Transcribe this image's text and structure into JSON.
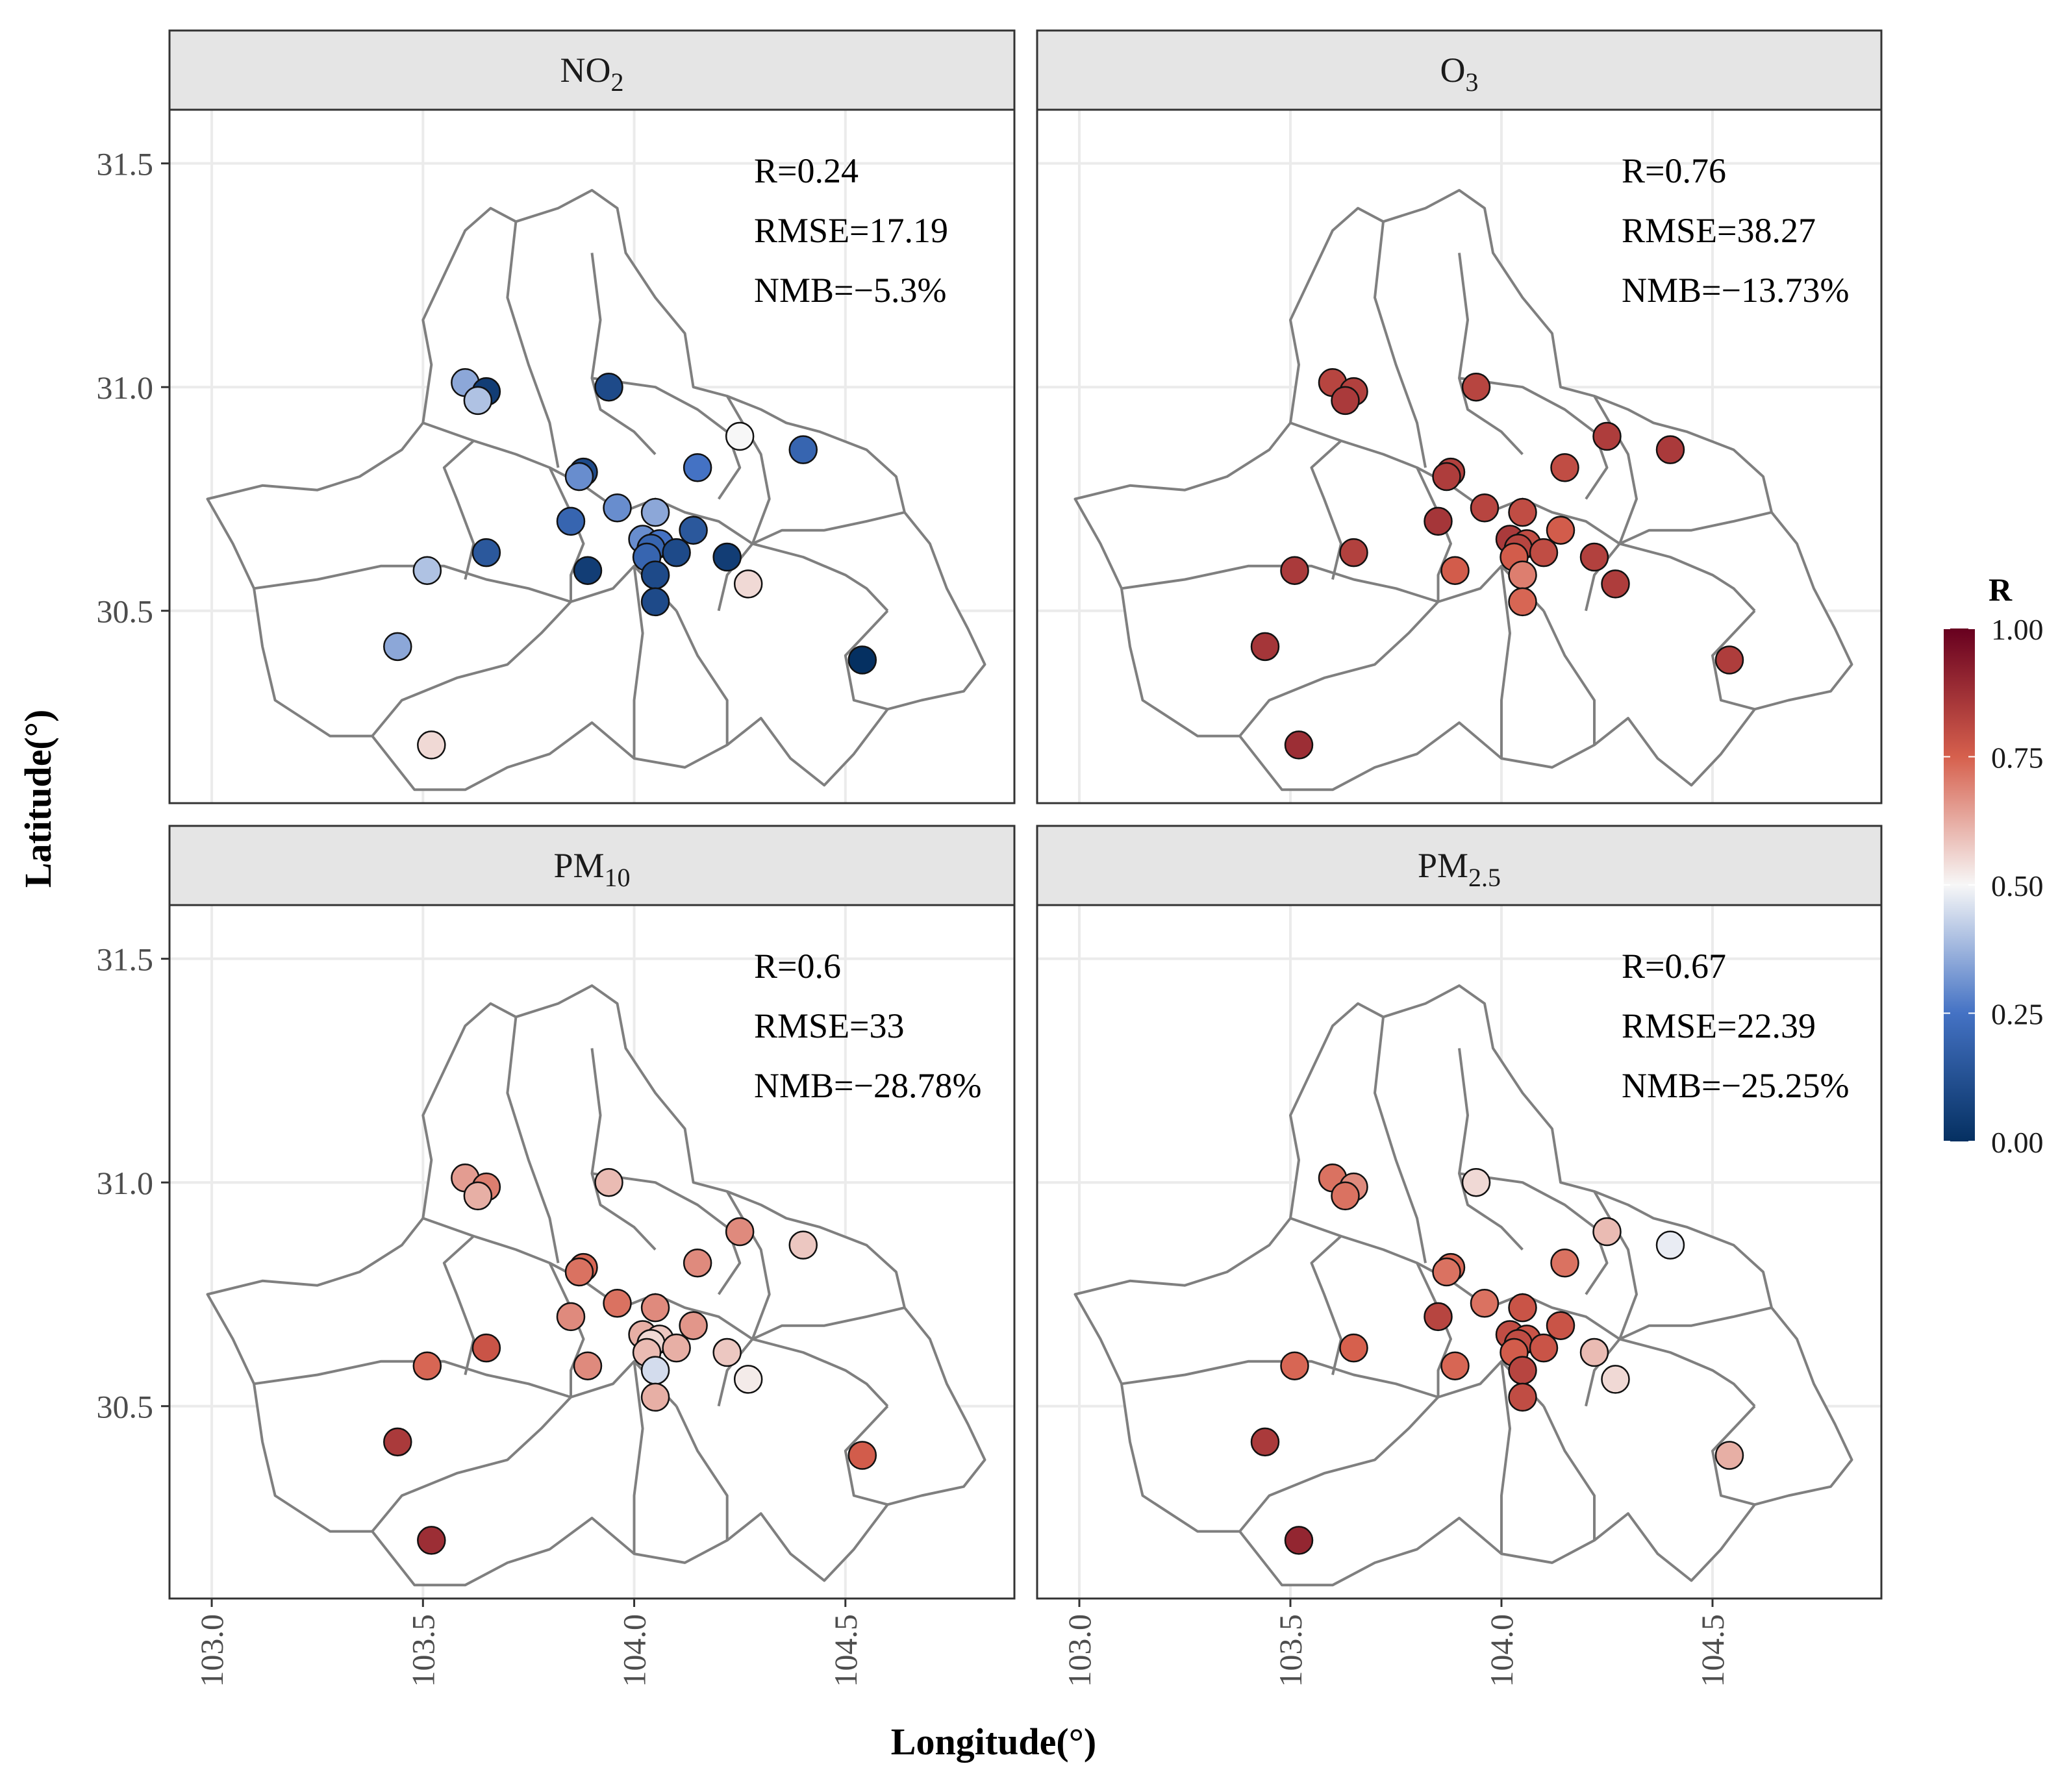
{
  "chart_data": {
    "type": "scatter",
    "facets": [
      {
        "name": "NO2",
        "title_main": "NO",
        "title_sub": "2",
        "stats": [
          "R=0.24",
          "RMSE=17.19",
          "NMB=−5.3%"
        ],
        "points": [
          {
            "lon": 103.6,
            "lat": 31.01,
            "r": 0.35
          },
          {
            "lon": 103.65,
            "lat": 30.99,
            "r": 0.05
          },
          {
            "lon": 103.63,
            "lat": 30.97,
            "r": 0.4
          },
          {
            "lon": 103.94,
            "lat": 31.0,
            "r": 0.1
          },
          {
            "lon": 104.25,
            "lat": 30.89,
            "r": 0.5
          },
          {
            "lon": 104.4,
            "lat": 30.86,
            "r": 0.2
          },
          {
            "lon": 104.15,
            "lat": 30.82,
            "r": 0.25
          },
          {
            "lon": 103.88,
            "lat": 30.81,
            "r": 0.1
          },
          {
            "lon": 103.87,
            "lat": 30.8,
            "r": 0.3
          },
          {
            "lon": 103.96,
            "lat": 30.73,
            "r": 0.3
          },
          {
            "lon": 104.05,
            "lat": 30.72,
            "r": 0.35
          },
          {
            "lon": 103.85,
            "lat": 30.7,
            "r": 0.2
          },
          {
            "lon": 104.14,
            "lat": 30.68,
            "r": 0.15
          },
          {
            "lon": 104.02,
            "lat": 30.66,
            "r": 0.3
          },
          {
            "lon": 104.06,
            "lat": 30.65,
            "r": 0.25
          },
          {
            "lon": 104.04,
            "lat": 30.64,
            "r": 0.2
          },
          {
            "lon": 103.65,
            "lat": 30.63,
            "r": 0.15
          },
          {
            "lon": 104.1,
            "lat": 30.63,
            "r": 0.1
          },
          {
            "lon": 104.03,
            "lat": 30.62,
            "r": 0.2
          },
          {
            "lon": 104.22,
            "lat": 30.62,
            "r": 0.05
          },
          {
            "lon": 103.89,
            "lat": 30.59,
            "r": 0.05
          },
          {
            "lon": 103.51,
            "lat": 30.59,
            "r": 0.4
          },
          {
            "lon": 104.05,
            "lat": 30.58,
            "r": 0.1
          },
          {
            "lon": 104.27,
            "lat": 30.56,
            "r": 0.55
          },
          {
            "lon": 104.05,
            "lat": 30.52,
            "r": 0.1
          },
          {
            "lon": 103.44,
            "lat": 30.42,
            "r": 0.35
          },
          {
            "lon": 104.54,
            "lat": 30.39,
            "r": 0.0
          },
          {
            "lon": 103.52,
            "lat": 30.2,
            "r": 0.55
          }
        ]
      },
      {
        "name": "O3",
        "title_main": "O",
        "title_sub": "3",
        "stats": [
          "R=0.76",
          "RMSE=38.27",
          "NMB=−13.73%"
        ],
        "points": [
          {
            "lon": 103.6,
            "lat": 31.01,
            "r": 0.82
          },
          {
            "lon": 103.65,
            "lat": 30.99,
            "r": 0.83
          },
          {
            "lon": 103.63,
            "lat": 30.97,
            "r": 0.85
          },
          {
            "lon": 103.94,
            "lat": 31.0,
            "r": 0.82
          },
          {
            "lon": 104.25,
            "lat": 30.89,
            "r": 0.84
          },
          {
            "lon": 104.4,
            "lat": 30.86,
            "r": 0.85
          },
          {
            "lon": 104.15,
            "lat": 30.82,
            "r": 0.8
          },
          {
            "lon": 103.88,
            "lat": 30.81,
            "r": 0.83
          },
          {
            "lon": 103.87,
            "lat": 30.8,
            "r": 0.84
          },
          {
            "lon": 103.96,
            "lat": 30.73,
            "r": 0.82
          },
          {
            "lon": 104.05,
            "lat": 30.72,
            "r": 0.8
          },
          {
            "lon": 103.85,
            "lat": 30.7,
            "r": 0.86
          },
          {
            "lon": 104.14,
            "lat": 30.68,
            "r": 0.76
          },
          {
            "lon": 104.02,
            "lat": 30.66,
            "r": 0.85
          },
          {
            "lon": 104.06,
            "lat": 30.65,
            "r": 0.8
          },
          {
            "lon": 104.04,
            "lat": 30.64,
            "r": 0.82
          },
          {
            "lon": 103.65,
            "lat": 30.63,
            "r": 0.83
          },
          {
            "lon": 104.1,
            "lat": 30.63,
            "r": 0.8
          },
          {
            "lon": 104.03,
            "lat": 30.62,
            "r": 0.76
          },
          {
            "lon": 104.22,
            "lat": 30.62,
            "r": 0.83
          },
          {
            "lon": 103.89,
            "lat": 30.59,
            "r": 0.76
          },
          {
            "lon": 103.51,
            "lat": 30.59,
            "r": 0.85
          },
          {
            "lon": 104.05,
            "lat": 30.58,
            "r": 0.7
          },
          {
            "lon": 104.27,
            "lat": 30.56,
            "r": 0.84
          },
          {
            "lon": 104.05,
            "lat": 30.52,
            "r": 0.74
          },
          {
            "lon": 103.44,
            "lat": 30.42,
            "r": 0.86
          },
          {
            "lon": 104.54,
            "lat": 30.39,
            "r": 0.84
          },
          {
            "lon": 103.52,
            "lat": 30.2,
            "r": 0.88
          }
        ]
      },
      {
        "name": "PM10",
        "title_main": "PM",
        "title_sub": "10",
        "stats": [
          "R=0.6",
          "RMSE=33",
          "NMB=−28.78%"
        ],
        "points": [
          {
            "lon": 103.6,
            "lat": 31.01,
            "r": 0.65
          },
          {
            "lon": 103.65,
            "lat": 30.99,
            "r": 0.7
          },
          {
            "lon": 103.63,
            "lat": 30.97,
            "r": 0.62
          },
          {
            "lon": 103.94,
            "lat": 31.0,
            "r": 0.6
          },
          {
            "lon": 104.25,
            "lat": 30.89,
            "r": 0.68
          },
          {
            "lon": 104.4,
            "lat": 30.86,
            "r": 0.58
          },
          {
            "lon": 104.15,
            "lat": 30.82,
            "r": 0.68
          },
          {
            "lon": 103.88,
            "lat": 30.81,
            "r": 0.74
          },
          {
            "lon": 103.87,
            "lat": 30.8,
            "r": 0.72
          },
          {
            "lon": 103.96,
            "lat": 30.73,
            "r": 0.72
          },
          {
            "lon": 104.05,
            "lat": 30.72,
            "r": 0.68
          },
          {
            "lon": 103.85,
            "lat": 30.7,
            "r": 0.68
          },
          {
            "lon": 104.14,
            "lat": 30.68,
            "r": 0.66
          },
          {
            "lon": 104.02,
            "lat": 30.66,
            "r": 0.62
          },
          {
            "lon": 104.06,
            "lat": 30.65,
            "r": 0.58
          },
          {
            "lon": 104.04,
            "lat": 30.64,
            "r": 0.55
          },
          {
            "lon": 103.65,
            "lat": 30.63,
            "r": 0.78
          },
          {
            "lon": 104.1,
            "lat": 30.63,
            "r": 0.62
          },
          {
            "lon": 104.03,
            "lat": 30.62,
            "r": 0.6
          },
          {
            "lon": 104.22,
            "lat": 30.62,
            "r": 0.58
          },
          {
            "lon": 103.89,
            "lat": 30.59,
            "r": 0.68
          },
          {
            "lon": 103.51,
            "lat": 30.59,
            "r": 0.74
          },
          {
            "lon": 104.05,
            "lat": 30.58,
            "r": 0.45
          },
          {
            "lon": 104.27,
            "lat": 30.56,
            "r": 0.52
          },
          {
            "lon": 104.05,
            "lat": 30.52,
            "r": 0.62
          },
          {
            "lon": 103.44,
            "lat": 30.42,
            "r": 0.85
          },
          {
            "lon": 104.54,
            "lat": 30.39,
            "r": 0.76
          },
          {
            "lon": 103.52,
            "lat": 30.2,
            "r": 0.88
          }
        ]
      },
      {
        "name": "PM2.5",
        "title_main": "PM",
        "title_sub": "2.5",
        "stats": [
          "R=0.67",
          "RMSE=22.39",
          "NMB=−25.25%"
        ],
        "points": [
          {
            "lon": 103.6,
            "lat": 31.01,
            "r": 0.72
          },
          {
            "lon": 103.65,
            "lat": 30.99,
            "r": 0.68
          },
          {
            "lon": 103.63,
            "lat": 30.97,
            "r": 0.72
          },
          {
            "lon": 103.94,
            "lat": 31.0,
            "r": 0.55
          },
          {
            "lon": 104.25,
            "lat": 30.89,
            "r": 0.6
          },
          {
            "lon": 104.4,
            "lat": 30.86,
            "r": 0.48
          },
          {
            "lon": 104.15,
            "lat": 30.82,
            "r": 0.72
          },
          {
            "lon": 103.88,
            "lat": 30.81,
            "r": 0.74
          },
          {
            "lon": 103.87,
            "lat": 30.8,
            "r": 0.72
          },
          {
            "lon": 103.96,
            "lat": 30.73,
            "r": 0.72
          },
          {
            "lon": 104.05,
            "lat": 30.72,
            "r": 0.78
          },
          {
            "lon": 103.85,
            "lat": 30.7,
            "r": 0.82
          },
          {
            "lon": 104.14,
            "lat": 30.68,
            "r": 0.78
          },
          {
            "lon": 104.02,
            "lat": 30.66,
            "r": 0.8
          },
          {
            "lon": 104.06,
            "lat": 30.65,
            "r": 0.78
          },
          {
            "lon": 104.04,
            "lat": 30.64,
            "r": 0.8
          },
          {
            "lon": 103.65,
            "lat": 30.63,
            "r": 0.75
          },
          {
            "lon": 104.1,
            "lat": 30.63,
            "r": 0.78
          },
          {
            "lon": 104.03,
            "lat": 30.62,
            "r": 0.76
          },
          {
            "lon": 104.22,
            "lat": 30.62,
            "r": 0.6
          },
          {
            "lon": 103.89,
            "lat": 30.59,
            "r": 0.74
          },
          {
            "lon": 103.51,
            "lat": 30.59,
            "r": 0.74
          },
          {
            "lon": 104.05,
            "lat": 30.58,
            "r": 0.82
          },
          {
            "lon": 104.27,
            "lat": 30.56,
            "r": 0.55
          },
          {
            "lon": 104.05,
            "lat": 30.52,
            "r": 0.8
          },
          {
            "lon": 103.44,
            "lat": 30.42,
            "r": 0.85
          },
          {
            "lon": 104.54,
            "lat": 30.39,
            "r": 0.62
          },
          {
            "lon": 103.52,
            "lat": 30.2,
            "r": 0.9
          }
        ]
      }
    ],
    "x_ticks": [
      "103.0",
      "103.5",
      "104.0",
      "104.5"
    ],
    "y_ticks": [
      "31.5",
      "31.0",
      "30.5"
    ],
    "xlim": [
      102.9,
      104.9
    ],
    "ylim": [
      30.07,
      31.62
    ],
    "xlabel": "Longitude(°)",
    "ylabel": "Latitude(°)",
    "legend": {
      "title": "R",
      "ticks": [
        "1.00",
        "0.75",
        "0.50",
        "0.25",
        "0.00"
      ],
      "range": [
        0,
        1
      ],
      "placement": "right"
    },
    "grid": true,
    "colors": {
      "low": "#053061",
      "mid_low": "#4472c4",
      "mid": "#f7f7f7",
      "mid_high": "#d6604d",
      "high": "#67001f",
      "strip_bg": "#e5e5e5",
      "boundary": "#7f7f7f",
      "gridline": "#ebebeb"
    }
  }
}
